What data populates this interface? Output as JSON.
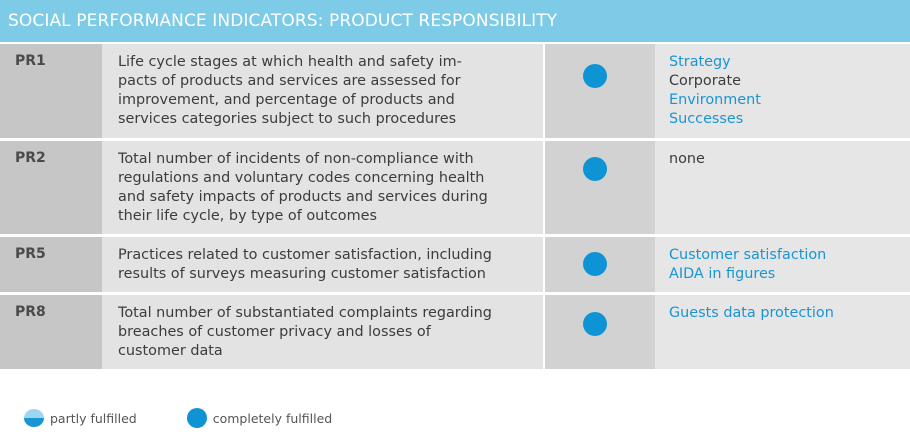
{
  "title": "SOCIAL PERFORMANCE INDICATORS: PRODUCT RESPONSIBILITY",
  "rows": [
    {
      "code": "PR1",
      "description": "Life cycle stages at which health and safety im-\npacts of products and services are assessed for\nimprovement, and percentage of products and\nservices categories subject to such procedures",
      "status": "completely fulfilled",
      "refs": [
        {
          "text": "Strategy",
          "link": true
        },
        {
          "text": "Corporate",
          "link": false
        },
        {
          "text": "Environment",
          "link": true
        },
        {
          "text": "Successes",
          "link": true
        }
      ]
    },
    {
      "code": "PR2",
      "description": "Total number of incidents of non-compliance with\nregulations and voluntary codes concerning health\nand safety impacts of products and services during\ntheir life cycle, by type of outcomes",
      "status": "completely fulfilled",
      "refs": [
        {
          "text": "none",
          "link": false
        }
      ]
    },
    {
      "code": "PR5",
      "description": "Practices related to customer satisfaction, including\nresults of surveys measuring customer satisfaction",
      "status": "completely fulfilled",
      "refs": [
        {
          "text": "Customer satisfaction",
          "link": true
        },
        {
          "text": "AIDA in figures",
          "link": true
        }
      ]
    },
    {
      "code": "PR8",
      "description": "Total number of substantiated complaints regarding\nbreaches of customer privacy and losses of\ncustomer data",
      "status": "completely fulfilled",
      "refs": [
        {
          "text": "Guests data protection",
          "link": true
        }
      ]
    }
  ],
  "legend": {
    "partly": "partly fulfilled",
    "completely": "completely fulfilled"
  },
  "colors": {
    "header": "#7dcbe6",
    "dot": "#0e93d5",
    "link": "#1a95d2"
  }
}
